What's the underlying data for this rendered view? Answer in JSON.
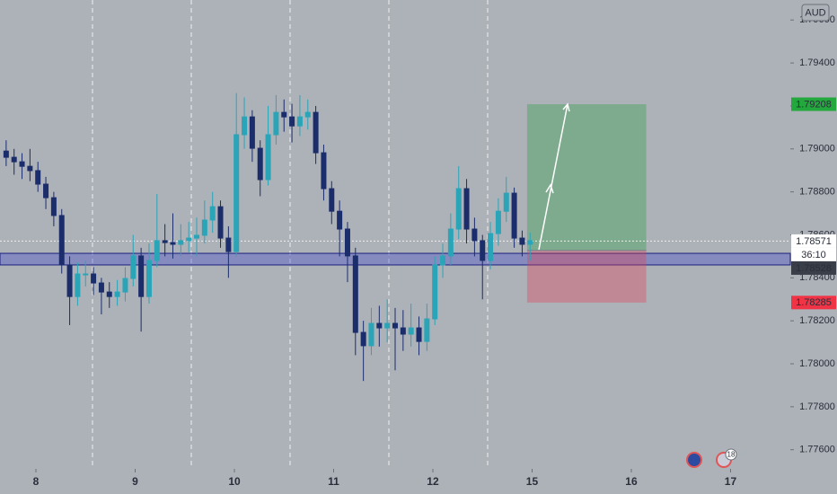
{
  "chart_data": {
    "type": "candlestick",
    "currency": "AUD",
    "xlim": [
      -0.362,
      7.602
    ],
    "ylim": [
      1.77511,
      1.79693
    ],
    "xticks": [
      {
        "value": 0,
        "label": "8"
      },
      {
        "value": 1,
        "label": "9"
      },
      {
        "value": 2,
        "label": "10"
      },
      {
        "value": 3,
        "label": "11"
      },
      {
        "value": 4,
        "label": "12"
      },
      {
        "value": 5,
        "label": "15"
      },
      {
        "value": 6,
        "label": "16"
      },
      {
        "value": 7,
        "label": "17"
      }
    ],
    "yticks": [
      {
        "value": 1.776,
        "label": "1.77600"
      },
      {
        "value": 1.778,
        "label": "1.77800"
      },
      {
        "value": 1.78,
        "label": "1.78000"
      },
      {
        "value": 1.782,
        "label": "1.78200"
      },
      {
        "value": 1.784,
        "label": "1.78400"
      },
      {
        "value": 1.786,
        "label": "1.78600"
      },
      {
        "value": 1.788,
        "label": "1.78800"
      },
      {
        "value": 1.79,
        "label": "1.79000"
      },
      {
        "value": 1.792,
        "label": "1.79200"
      },
      {
        "value": 1.794,
        "label": "1.79400"
      },
      {
        "value": 1.796,
        "label": "1.79600"
      }
    ],
    "up_color": "#2aa5b8",
    "down_color": "#1b2d6b",
    "candles": {
      "x": [
        -0.3,
        -0.22,
        -0.14,
        -0.06,
        0.02,
        0.1,
        0.18,
        0.26,
        0.34,
        0.42,
        0.5,
        0.58,
        0.66,
        0.74,
        0.82,
        0.9,
        0.98,
        1.06,
        1.14,
        1.22,
        1.3,
        1.38,
        1.46,
        1.54,
        1.62,
        1.7,
        1.78,
        1.86,
        1.94,
        2.02,
        2.1,
        2.18,
        2.26,
        2.34,
        2.42,
        2.5,
        2.58,
        2.66,
        2.74,
        2.82,
        2.9,
        2.98,
        3.06,
        3.14,
        3.22,
        3.3,
        3.38,
        3.46,
        3.54,
        3.62,
        3.7,
        3.78,
        3.86,
        3.94,
        4.02,
        4.1,
        4.18,
        4.26,
        4.34,
        4.42,
        4.5,
        4.58,
        4.66,
        4.74,
        4.82,
        4.9,
        4.98
      ],
      "open": [
        1.7899,
        1.78961,
        1.7894,
        1.78919,
        1.78899,
        1.78836,
        1.78773,
        1.7869,
        1.7846,
        1.78313,
        1.78418,
        1.78418,
        1.78376,
        1.78334,
        1.78313,
        1.78334,
        1.78397,
        1.78502,
        1.78313,
        1.78481,
        1.78573,
        1.78564,
        1.78556,
        1.78573,
        1.78585,
        1.78598,
        1.78669,
        1.78731,
        1.78585,
        1.78522,
        1.79066,
        1.79149,
        1.79003,
        1.78857,
        1.79066,
        1.7917,
        1.79149,
        1.79107,
        1.79149,
        1.7917,
        1.78982,
        1.78815,
        1.7871,
        1.78627,
        1.78502,
        1.78146,
        1.78084,
        1.78188,
        1.78167,
        1.78188,
        1.78167,
        1.78138,
        1.78167,
        1.78104,
        1.78209,
        1.7846,
        1.78502,
        1.78627,
        1.78815,
        1.78627,
        1.78573,
        1.78481,
        1.78606,
        1.7871,
        1.78794,
        1.78585,
        1.78556
      ],
      "high": [
        1.7904,
        1.79,
        1.7898,
        1.79,
        1.7894,
        1.7887,
        1.788,
        1.7872,
        1.785,
        1.7847,
        1.7848,
        1.7845,
        1.784,
        1.7838,
        1.7839,
        1.7845,
        1.786,
        1.7854,
        1.7856,
        1.7879,
        1.7865,
        1.787,
        1.7865,
        1.7866,
        1.7868,
        1.7876,
        1.788,
        1.7876,
        1.7864,
        1.7926,
        1.7924,
        1.7918,
        1.7904,
        1.792,
        1.7925,
        1.7923,
        1.7921,
        1.7925,
        1.7923,
        1.792,
        1.7902,
        1.7885,
        1.7876,
        1.7866,
        1.7854,
        1.782,
        1.7826,
        1.7827,
        1.783,
        1.7826,
        1.7825,
        1.7828,
        1.7822,
        1.7828,
        1.785,
        1.7856,
        1.787,
        1.7892,
        1.7886,
        1.7868,
        1.786,
        1.7866,
        1.7877,
        1.7887,
        1.7882,
        1.7862,
        1.7861
      ],
      "low": [
        1.7892,
        1.7888,
        1.7886,
        1.7885,
        1.788,
        1.7872,
        1.7864,
        1.7842,
        1.7818,
        1.7827,
        1.7836,
        1.7832,
        1.7823,
        1.7826,
        1.7827,
        1.7829,
        1.7836,
        1.7815,
        1.7828,
        1.7845,
        1.785,
        1.7849,
        1.785,
        1.7852,
        1.785,
        1.7856,
        1.7861,
        1.7854,
        1.784,
        1.785,
        1.79,
        1.7894,
        1.7878,
        1.7883,
        1.7902,
        1.7908,
        1.7903,
        1.7906,
        1.7909,
        1.7893,
        1.7876,
        1.7865,
        1.785,
        1.7838,
        1.7804,
        1.7792,
        1.7804,
        1.7808,
        1.781,
        1.7797,
        1.7806,
        1.7808,
        1.7804,
        1.7806,
        1.7818,
        1.784,
        1.7846,
        1.7858,
        1.7856,
        1.785,
        1.783,
        1.7844,
        1.7855,
        1.7866,
        1.7854,
        1.785,
        1.7848
      ],
      "close": [
        1.78961,
        1.7894,
        1.78919,
        1.78899,
        1.78836,
        1.78773,
        1.7869,
        1.7846,
        1.78313,
        1.78418,
        1.78418,
        1.78376,
        1.78334,
        1.78313,
        1.78334,
        1.78397,
        1.78502,
        1.78313,
        1.78481,
        1.78573,
        1.78564,
        1.78556,
        1.78573,
        1.78585,
        1.78598,
        1.78669,
        1.78731,
        1.78585,
        1.78522,
        1.79066,
        1.79149,
        1.79003,
        1.78857,
        1.79066,
        1.7917,
        1.79149,
        1.79107,
        1.79149,
        1.7917,
        1.78982,
        1.78815,
        1.7871,
        1.78627,
        1.78502,
        1.78146,
        1.78084,
        1.78188,
        1.78167,
        1.78188,
        1.78167,
        1.78138,
        1.78167,
        1.78104,
        1.78209,
        1.7846,
        1.78502,
        1.78627,
        1.78815,
        1.78627,
        1.78573,
        1.78481,
        1.78606,
        1.7871,
        1.78794,
        1.78585,
        1.78556,
        1.78573
      ]
    },
    "zone": {
      "low": 1.7846,
      "high": 1.78514
    },
    "position": {
      "start_x": 4.95,
      "end_x": 6.15,
      "entry": 1.78528,
      "target": 1.79208,
      "stop": 1.78285
    },
    "last_price": 1.78571,
    "countdown": "36:10",
    "events_badge": "18"
  }
}
